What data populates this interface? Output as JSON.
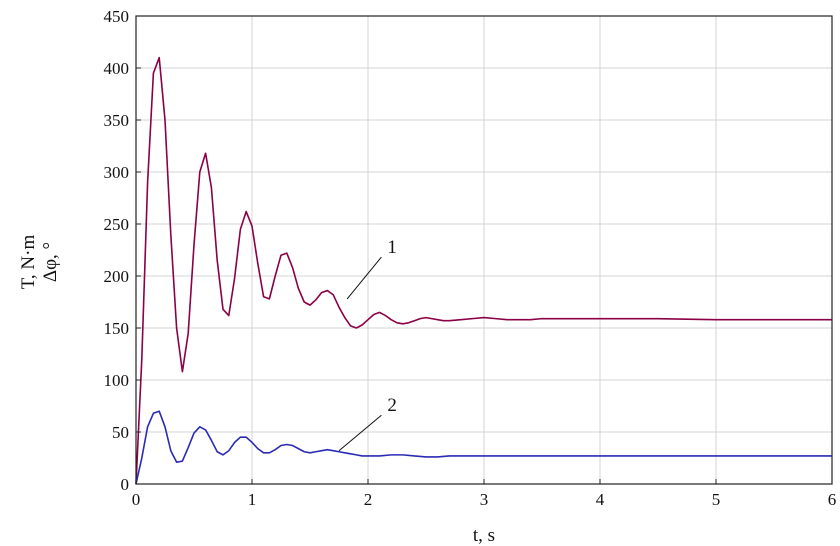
{
  "chart_data": {
    "type": "line",
    "xlabel": "t, s",
    "ylabel_lines": [
      "T, N·m",
      "Δφ, °"
    ],
    "xlim": [
      0,
      6
    ],
    "ylim": [
      0,
      450
    ],
    "xticks": [
      0,
      1,
      2,
      3,
      4,
      5,
      6
    ],
    "yticks": [
      0,
      50,
      100,
      150,
      200,
      250,
      300,
      350,
      400,
      450
    ],
    "grid": true,
    "legend": "none",
    "annotations": [
      {
        "text": "1",
        "target_x": 1.82,
        "target_y": 178,
        "label_x": 2.15,
        "label_y": 222
      },
      {
        "text": "2",
        "target_x": 1.75,
        "target_y": 32,
        "label_x": 2.15,
        "label_y": 70
      }
    ],
    "series": [
      {
        "color": "#8B0046",
        "x": [
          0,
          0.05,
          0.1,
          0.15,
          0.2,
          0.25,
          0.3,
          0.35,
          0.4,
          0.45,
          0.5,
          0.55,
          0.6,
          0.65,
          0.7,
          0.75,
          0.8,
          0.85,
          0.9,
          0.95,
          1.0,
          1.05,
          1.1,
          1.15,
          1.2,
          1.25,
          1.3,
          1.35,
          1.4,
          1.45,
          1.5,
          1.55,
          1.6,
          1.65,
          1.7,
          1.75,
          1.8,
          1.85,
          1.9,
          1.95,
          2.0,
          2.05,
          2.1,
          2.15,
          2.2,
          2.25,
          2.3,
          2.35,
          2.4,
          2.45,
          2.5,
          2.55,
          2.6,
          2.65,
          2.7,
          2.8,
          2.9,
          3.0,
          3.1,
          3.2,
          3.3,
          3.4,
          3.5,
          3.7,
          4.0,
          4.5,
          5.0,
          5.5,
          6.0
        ],
        "values": [
          0,
          120,
          290,
          395,
          410,
          350,
          240,
          150,
          108,
          145,
          230,
          300,
          318,
          285,
          215,
          168,
          162,
          198,
          245,
          262,
          248,
          212,
          180,
          178,
          200,
          220,
          222,
          208,
          188,
          175,
          172,
          177,
          184,
          186,
          182,
          170,
          160,
          152,
          150,
          153,
          158,
          163,
          165,
          162,
          158,
          155,
          154,
          155,
          157,
          159,
          160,
          159,
          158,
          157,
          157,
          158,
          159,
          160,
          159,
          158,
          158,
          158,
          159,
          159,
          159,
          159,
          158,
          158,
          158
        ]
      },
      {
        "color": "#2A2AB5",
        "x": [
          0,
          0.05,
          0.1,
          0.15,
          0.2,
          0.25,
          0.3,
          0.35,
          0.4,
          0.45,
          0.5,
          0.55,
          0.6,
          0.65,
          0.7,
          0.75,
          0.8,
          0.85,
          0.9,
          0.95,
          1.0,
          1.05,
          1.1,
          1.15,
          1.2,
          1.25,
          1.3,
          1.35,
          1.4,
          1.45,
          1.5,
          1.55,
          1.6,
          1.65,
          1.7,
          1.75,
          1.8,
          1.85,
          1.9,
          1.95,
          2.0,
          2.1,
          2.2,
          2.3,
          2.4,
          2.5,
          2.6,
          2.7,
          2.8,
          2.9,
          3.0,
          3.2,
          3.5,
          4.0,
          4.5,
          5.0,
          5.5,
          6.0
        ],
        "values": [
          0,
          25,
          55,
          68,
          70,
          55,
          32,
          21,
          22,
          35,
          49,
          55,
          52,
          42,
          31,
          28,
          32,
          40,
          45,
          45,
          40,
          34,
          30,
          30,
          33,
          37,
          38,
          37,
          34,
          31,
          30,
          31,
          32,
          33,
          32,
          31,
          30,
          29,
          28,
          27,
          27,
          27,
          28,
          28,
          27,
          26,
          26,
          27,
          27,
          27,
          27,
          27,
          27,
          27,
          27,
          27,
          27,
          27
        ]
      }
    ]
  }
}
